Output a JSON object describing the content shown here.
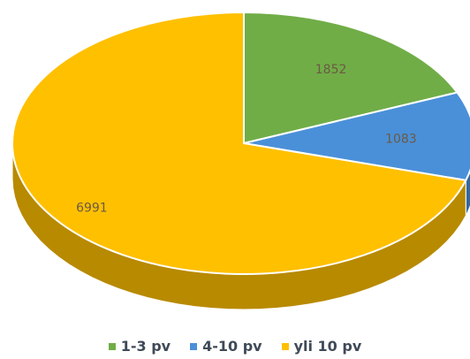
{
  "chart_data": {
    "type": "pie",
    "style": "3d",
    "categories": [
      "1-3 pv",
      "4-10 pv",
      "yli 10 pv"
    ],
    "values": [
      1852,
      1083,
      6991
    ],
    "labels": [
      "1852",
      "1083",
      "6991"
    ],
    "colors": [
      "#70AD47",
      "#4A90D9",
      "#FFC000"
    ],
    "title": "",
    "legend_position": "bottom"
  },
  "legend": {
    "items": [
      {
        "label": "1-3 pv",
        "color": "#70AD47"
      },
      {
        "label": "4-10 pv",
        "color": "#4A90D9"
      },
      {
        "label": "yli 10 pv",
        "color": "#FFC000"
      }
    ]
  }
}
